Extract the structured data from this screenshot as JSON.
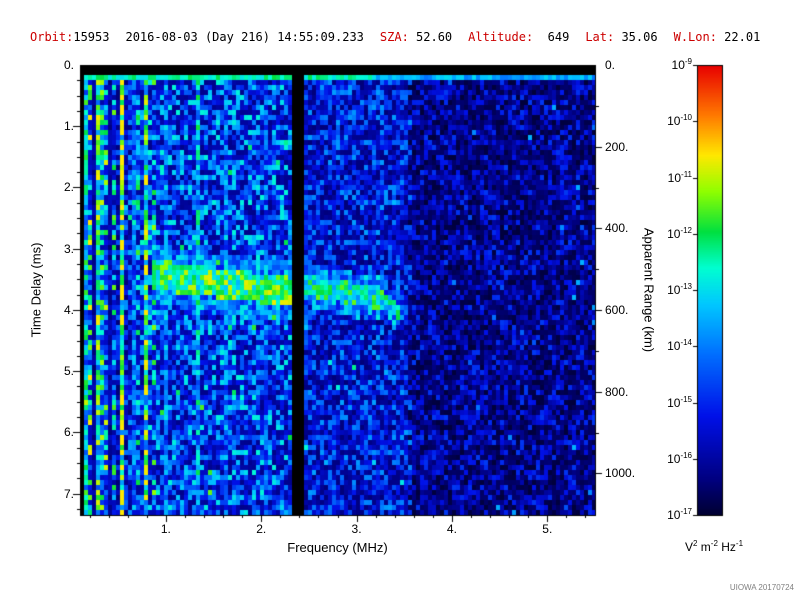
{
  "header": {
    "fields": [
      {
        "label": "Orbit:",
        "value": "15953"
      },
      {
        "label": "",
        "value": "2016-08-03 (Day 216) 14:55:09.233"
      },
      {
        "label": "SZA:",
        "value": " 52.60"
      },
      {
        "label": "Altitude:",
        "value": "  649"
      },
      {
        "label": "Lat:",
        "value": " 35.06"
      },
      {
        "label": "W.Lon:",
        "value": " 22.01"
      }
    ]
  },
  "colors": {
    "header_label_red": "#cc0000",
    "axis_black": "#000000",
    "credit_gray": "#808080"
  },
  "credit": "UIOWA 20170724",
  "chart_data": {
    "type": "heatmap",
    "title": "",
    "xlabel": "Frequency (MHz)",
    "ylabel_left": "Time Delay (ms)",
    "ylabel_right": "Apparent Range (km)",
    "x_range_mhz": [
      0.1,
      5.5
    ],
    "y_range_ms": [
      0.0,
      7.35
    ],
    "km_per_ms": 149.9,
    "x_ticks": [
      1,
      2,
      3,
      4,
      5
    ],
    "x_tick_labels": [
      "1.",
      "2.",
      "3.",
      "4.",
      "5."
    ],
    "x_minor_step_mhz": 0.2,
    "y_ticks_ms": [
      0,
      1,
      2,
      3,
      4,
      5,
      6,
      7
    ],
    "y_tick_labels": [
      "0.",
      "1.",
      "2.",
      "3.",
      "4.",
      "5.",
      "6.",
      "7."
    ],
    "y_minor_step_ms": 0.25,
    "right_ticks_km": [
      0,
      200,
      400,
      600,
      800,
      1000
    ],
    "right_tick_labels": [
      "0.",
      "200.",
      "400.",
      "600.",
      "800.",
      "1000."
    ],
    "right_minor_step_km": 100,
    "colorbar": {
      "max_exp": -9,
      "min_exp": -17,
      "tick_exponents": [
        -9,
        -10,
        -11,
        -12,
        -13,
        -14,
        -15,
        -16,
        -17
      ],
      "unit_parts": [
        {
          "base": "V",
          "exp": "2"
        },
        {
          "base": "m",
          "exp": "-2"
        },
        {
          "base": "Hz",
          "exp": "-1"
        }
      ]
    },
    "colormap": [
      {
        "t": 0.0,
        "c": "#000030"
      },
      {
        "t": 0.08,
        "c": "#000080"
      },
      {
        "t": 0.22,
        "c": "#0010e8"
      },
      {
        "t": 0.36,
        "c": "#0070ff"
      },
      {
        "t": 0.47,
        "c": "#00c8ff"
      },
      {
        "t": 0.55,
        "c": "#00ffd0"
      },
      {
        "t": 0.63,
        "c": "#00e040"
      },
      {
        "t": 0.72,
        "c": "#90ff00"
      },
      {
        "t": 0.8,
        "c": "#ffe800"
      },
      {
        "t": 0.89,
        "c": "#ff7800"
      },
      {
        "t": 1.0,
        "c": "#e80000"
      }
    ],
    "features": {
      "top_black_ms": 0.13,
      "top_line_ms": 0.26,
      "left_black_mhz": 0.145,
      "black_band_mhz": [
        2.33,
        2.45
      ],
      "regions": [
        {
          "fmax": 0.8,
          "level": 0.3
        },
        {
          "fmax": 2.4,
          "level": 0.27
        },
        {
          "fmax": 3.6,
          "level": 0.21
        },
        {
          "fmax": 9.0,
          "level": 0.14
        }
      ],
      "stripes": [
        {
          "f": 0.18,
          "w": 0.022,
          "boost": 1.8
        },
        {
          "f": 0.24,
          "w": 0.015,
          "boost": 0.5
        },
        {
          "f": 0.3,
          "w": 0.028,
          "boost": 2.1
        },
        {
          "f": 0.43,
          "w": 0.018,
          "boost": 0.45
        },
        {
          "f": 0.55,
          "w": 0.028,
          "boost": 2.0
        },
        {
          "f": 0.66,
          "w": 0.015,
          "boost": 1.5
        },
        {
          "f": 0.8,
          "w": 0.032,
          "boost": 2.2
        },
        {
          "f": 1.0,
          "w": 0.018,
          "boost": 1.6
        },
        {
          "f": 1.33,
          "w": 0.03,
          "boost": 2.0
        },
        {
          "f": 1.62,
          "w": 0.016,
          "boost": 1.5
        },
        {
          "f": 2.05,
          "w": 0.016,
          "boost": 1.4
        }
      ],
      "trace": {
        "segments": [
          {
            "f0": 0.85,
            "f1": 2.33,
            "td0": 3.42,
            "td1": 3.72,
            "half_ms": 0.24,
            "v": 0.62
          },
          {
            "f0": 2.45,
            "f1": 3.28,
            "td0": 3.6,
            "td1": 3.82,
            "half_ms": 0.17,
            "v": 0.55
          },
          {
            "f0": 3.28,
            "f1": 3.46,
            "td0": 3.82,
            "td1": 4.05,
            "half_ms": 0.13,
            "v": 0.52
          }
        ],
        "lead_hook": {
          "f0": 0.58,
          "f1": 0.85,
          "td0": 2.25,
          "td1": 3.42,
          "half_ms": 0.2,
          "v": 0.46
        }
      }
    }
  }
}
